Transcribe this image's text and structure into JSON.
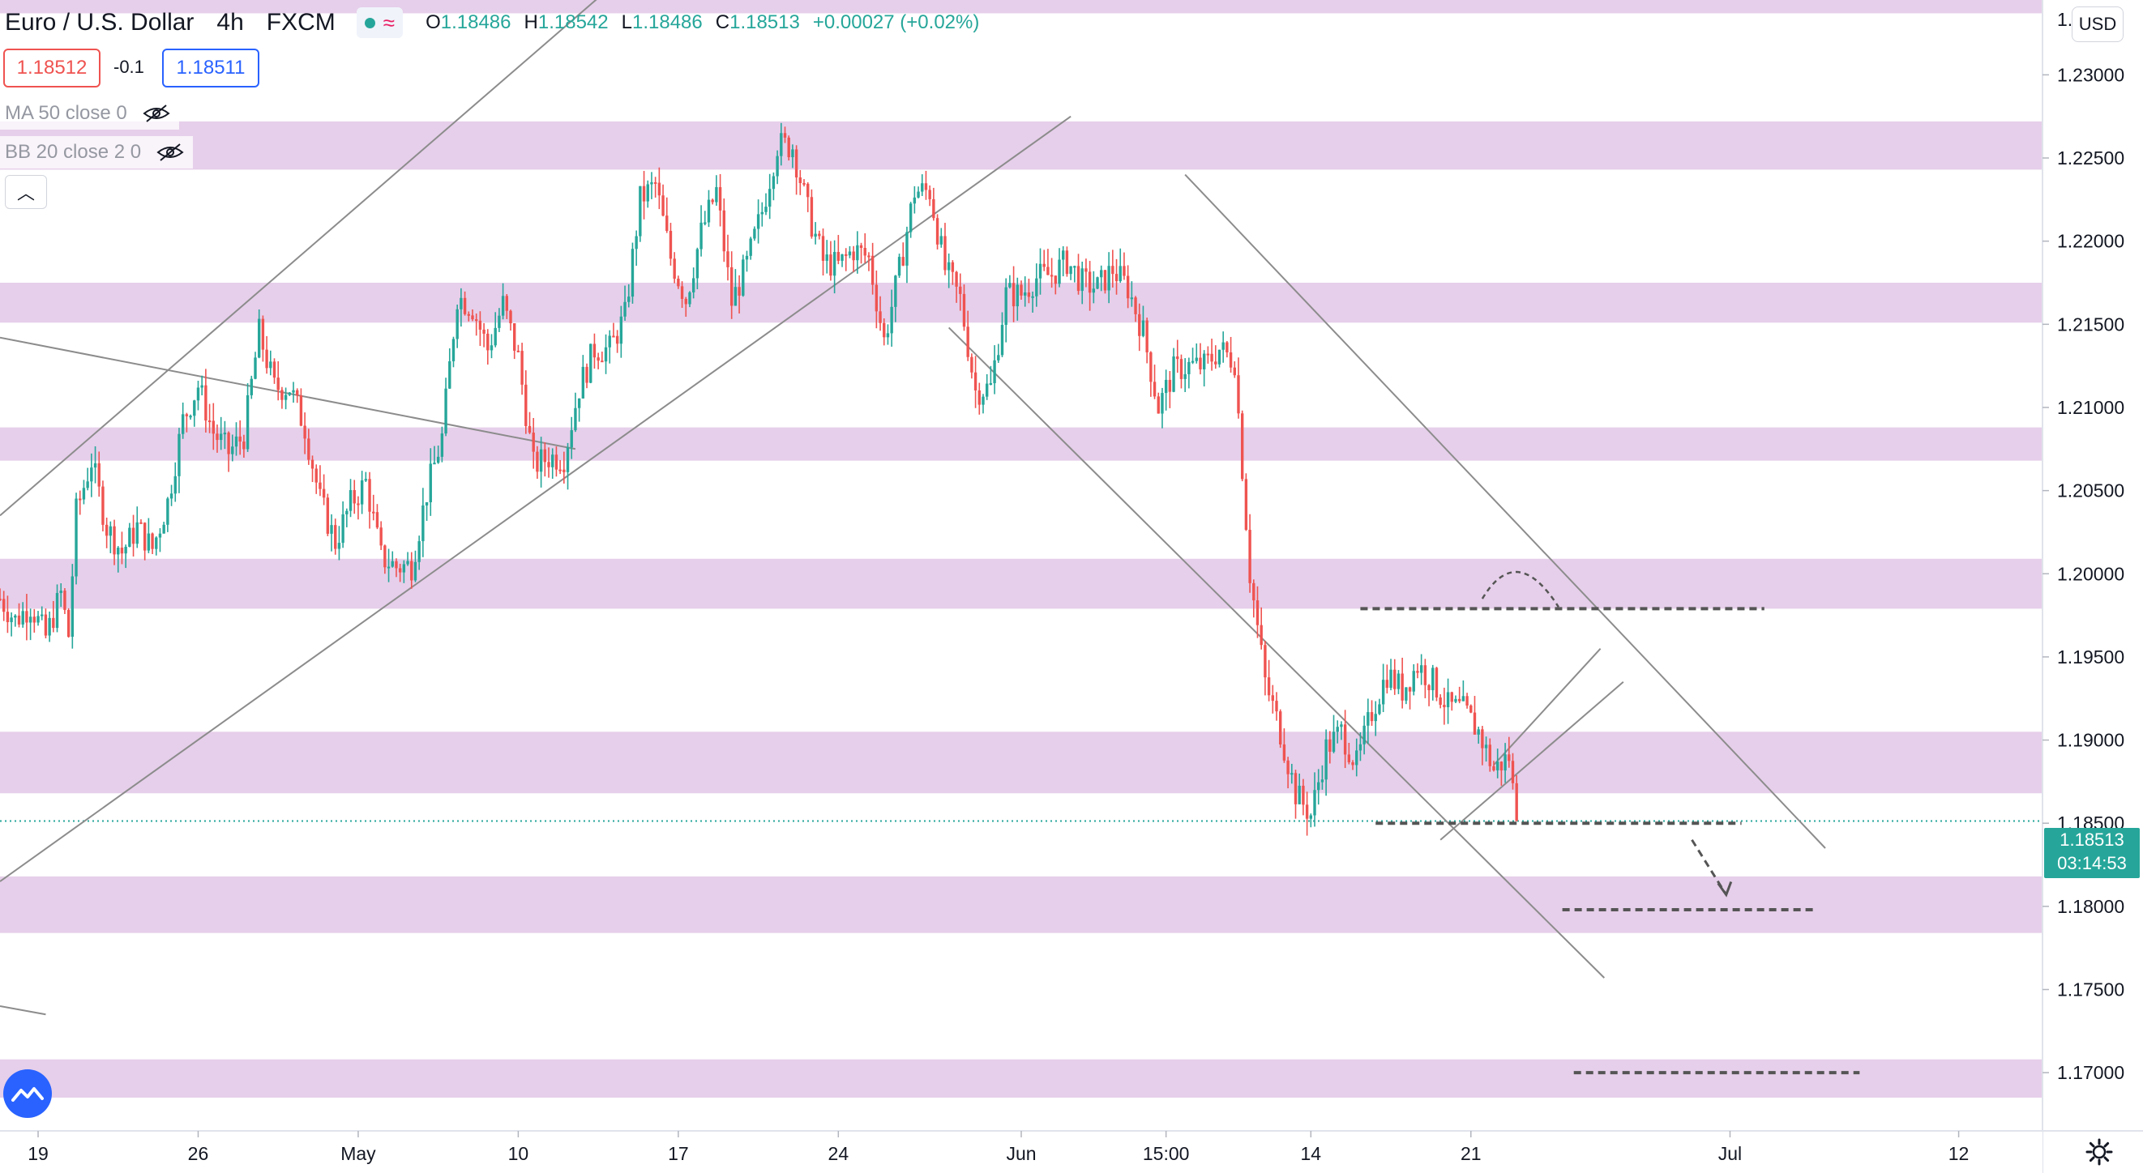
{
  "header": {
    "symbol": "Euro / U.S. Dollar",
    "interval": "4h",
    "source": "FXCM",
    "ohlc": {
      "o_label": "O",
      "o": "1.18486",
      "h_label": "H",
      "h": "1.18542",
      "l_label": "L",
      "l": "1.18486",
      "c_label": "C",
      "c": "1.18513",
      "change": "+0.00027 (+0.02%)"
    }
  },
  "trade": {
    "sell_price": "1.18512",
    "spread": "-0.1",
    "buy_price": "1.18511"
  },
  "indicators": [
    {
      "label": "MA 50 close 0",
      "icon": "eye-hidden-icon"
    },
    {
      "label": "BB 20 close 2 0",
      "icon": "eye-hidden-icon"
    }
  ],
  "currency_button": "USD",
  "last_price": {
    "price": "1.18513",
    "countdown": "03:14:53"
  },
  "colors": {
    "up": "#26a69a",
    "down": "#ef5350",
    "zone": "#e6cfea",
    "line": "#8c8c8c",
    "dashed": "#555555"
  },
  "chart_data": {
    "type": "candlestick",
    "title": "Euro / U.S. Dollar",
    "ylim": [
      1.1665,
      1.2345
    ],
    "y_ticks": [
      "1.17000",
      "1.17500",
      "1.18000",
      "1.18500",
      "1.19000",
      "1.19500",
      "1.20000",
      "1.20500",
      "1.21000",
      "1.21500",
      "1.22000",
      "1.22500",
      "1.23000"
    ],
    "y_top_partial": "1.",
    "x_ticks": [
      {
        "label": "19",
        "t": 4
      },
      {
        "label": "26",
        "t": 46
      },
      {
        "label": "May",
        "t": 88
      },
      {
        "label": "10",
        "t": 130
      },
      {
        "label": "17",
        "t": 172
      },
      {
        "label": "24",
        "t": 214
      },
      {
        "label": "Jun",
        "t": 262
      },
      {
        "label": "15:00",
        "t": 300
      },
      {
        "label": "14",
        "t": 338
      },
      {
        "label": "21",
        "t": 380
      },
      {
        "label": "Jul",
        "t": 448
      },
      {
        "label": "12",
        "t": 508
      }
    ],
    "x_range": [
      -6,
      530
    ],
    "zones": [
      [
        1.2337,
        1.2347
      ],
      [
        1.2243,
        1.2272
      ],
      [
        1.2151,
        1.2175
      ],
      [
        1.2068,
        1.2088
      ],
      [
        1.1979,
        1.2009
      ],
      [
        1.1868,
        1.1905
      ],
      [
        1.1784,
        1.1818
      ],
      [
        1.1685,
        1.1708
      ]
    ],
    "price_path": [
      [
        -6,
        1.1985
      ],
      [
        -2,
        1.1972
      ],
      [
        2,
        1.1981
      ],
      [
        6,
        1.1962
      ],
      [
        10,
        1.1988
      ],
      [
        12,
        1.1963
      ],
      [
        14,
        1.2037
      ],
      [
        18,
        1.2068
      ],
      [
        22,
        1.2028
      ],
      [
        26,
        1.2013
      ],
      [
        30,
        1.2028
      ],
      [
        34,
        1.2015
      ],
      [
        38,
        1.2043
      ],
      [
        42,
        1.2092
      ],
      [
        46,
        1.2113
      ],
      [
        50,
        1.2085
      ],
      [
        54,
        1.2073
      ],
      [
        58,
        1.2083
      ],
      [
        62,
        1.2145
      ],
      [
        66,
        1.2112
      ],
      [
        70,
        1.2112
      ],
      [
        74,
        1.2088
      ],
      [
        78,
        1.2044
      ],
      [
        82,
        1.2019
      ],
      [
        86,
        1.2042
      ],
      [
        90,
        1.2055
      ],
      [
        94,
        1.201
      ],
      [
        98,
        1.2004
      ],
      [
        102,
        1.2005
      ],
      [
        106,
        1.2049
      ],
      [
        110,
        1.2082
      ],
      [
        114,
        1.2167
      ],
      [
        118,
        1.216
      ],
      [
        122,
        1.2135
      ],
      [
        126,
        1.2162
      ],
      [
        130,
        1.213
      ],
      [
        134,
        1.2065
      ],
      [
        138,
        1.207
      ],
      [
        142,
        1.207
      ],
      [
        146,
        1.2112
      ],
      [
        150,
        1.2135
      ],
      [
        154,
        1.2135
      ],
      [
        158,
        1.2155
      ],
      [
        162,
        1.2225
      ],
      [
        166,
        1.2234
      ],
      [
        170,
        1.219
      ],
      [
        174,
        1.2165
      ],
      [
        178,
        1.2205
      ],
      [
        182,
        1.223
      ],
      [
        186,
        1.2163
      ],
      [
        190,
        1.2186
      ],
      [
        194,
        1.2218
      ],
      [
        198,
        1.2258
      ],
      [
        202,
        1.2257
      ],
      [
        206,
        1.2218
      ],
      [
        210,
        1.2188
      ],
      [
        214,
        1.2185
      ],
      [
        218,
        1.2195
      ],
      [
        222,
        1.219
      ],
      [
        226,
        1.214
      ],
      [
        230,
        1.2182
      ],
      [
        234,
        1.223
      ],
      [
        238,
        1.223
      ],
      [
        242,
        1.2183
      ],
      [
        246,
        1.2165
      ],
      [
        250,
        1.211
      ],
      [
        254,
        1.2112
      ],
      [
        258,
        1.2168
      ],
      [
        262,
        1.2168
      ],
      [
        266,
        1.2178
      ],
      [
        270,
        1.218
      ],
      [
        274,
        1.2188
      ],
      [
        278,
        1.2175
      ],
      [
        282,
        1.2172
      ],
      [
        286,
        1.2183
      ],
      [
        290,
        1.2172
      ],
      [
        294,
        1.2145
      ],
      [
        298,
        1.21
      ],
      [
        302,
        1.2122
      ],
      [
        306,
        1.2125
      ],
      [
        310,
        1.2125
      ],
      [
        314,
        1.2135
      ],
      [
        318,
        1.2128
      ],
      [
        322,
        1.2
      ],
      [
        326,
        1.1935
      ],
      [
        330,
        1.1905
      ],
      [
        334,
        1.1868
      ],
      [
        338,
        1.1855
      ],
      [
        342,
        1.1895
      ],
      [
        346,
        1.1905
      ],
      [
        350,
        1.1885
      ],
      [
        354,
        1.1917
      ],
      [
        358,
        1.194
      ],
      [
        362,
        1.193
      ],
      [
        366,
        1.1945
      ],
      [
        370,
        1.1935
      ],
      [
        374,
        1.192
      ],
      [
        378,
        1.1918
      ],
      [
        382,
        1.1905
      ],
      [
        386,
        1.1882
      ],
      [
        390,
        1.189
      ],
      [
        392,
        1.1851
      ]
    ],
    "trendlines": [
      [
        [
          -6,
          1.2035
        ],
        [
          168,
          1.238
        ]
      ],
      [
        [
          -6,
          1.1815
        ],
        [
          275,
          1.2275
        ]
      ],
      [
        [
          -6,
          1.2142
        ],
        [
          145,
          1.2075
        ]
      ],
      [
        [
          243,
          1.2148
        ],
        [
          415,
          1.1757
        ]
      ],
      [
        [
          305,
          1.224
        ],
        [
          473,
          1.1835
        ]
      ],
      [
        [
          372,
          1.184
        ],
        [
          420,
          1.1935
        ]
      ],
      [
        [
          386,
          1.1885
        ],
        [
          414,
          1.1955
        ]
      ],
      [
        [
          -6,
          1.174
        ],
        [
          6,
          1.1735
        ]
      ]
    ],
    "dashed_levels": [
      [
        351,
        457,
        1.1979
      ],
      [
        355,
        451,
        1.185
      ],
      [
        404,
        471,
        1.1798
      ],
      [
        407,
        482,
        1.17
      ]
    ],
    "curved_arrow": [
      [
        383,
        1.1985
      ],
      [
        392,
        1.2
      ],
      [
        403,
        1.198
      ]
    ],
    "down_arrow": [
      [
        438,
        1.184
      ],
      [
        447,
        1.1807
      ]
    ],
    "last_price_level": 1.18513
  }
}
